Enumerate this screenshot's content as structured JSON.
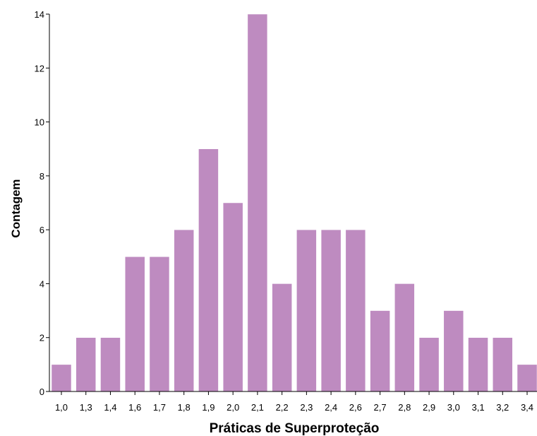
{
  "chart_data": {
    "type": "bar",
    "title": "",
    "xlabel": "Práticas de Superproteção",
    "ylabel": "Contagem",
    "categories": [
      "1,0",
      "1,3",
      "1,4",
      "1,6",
      "1,7",
      "1,8",
      "1,9",
      "2,0",
      "2,1",
      "2,2",
      "2,3",
      "2,4",
      "2,6",
      "2,7",
      "2,8",
      "2,9",
      "3,0",
      "3,1",
      "3,2",
      "3,4"
    ],
    "values": [
      1,
      2,
      2,
      5,
      5,
      6,
      9,
      7,
      14,
      4,
      6,
      6,
      6,
      3,
      4,
      2,
      3,
      2,
      2,
      1
    ],
    "ylim": [
      0,
      14
    ],
    "yticks": [
      "0",
      "2",
      "4",
      "6",
      "8",
      "10",
      "12",
      "14"
    ],
    "grid": false,
    "bar_color": "#be8bc0",
    "bar_stroke_color": "#ffffff"
  }
}
